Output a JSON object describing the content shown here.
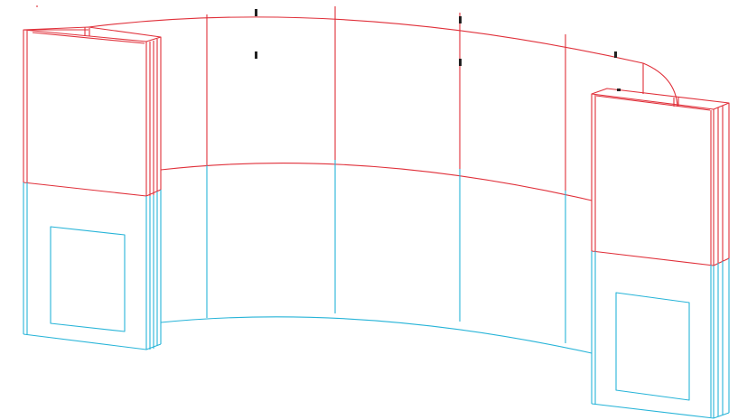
{
  "drawing": {
    "view": "wireframe",
    "subject": "curved-exhibit-wall-with-two-pillars",
    "colors": {
      "upper_section": "#e0303a",
      "lower_section": "#27b4d8",
      "marker": "#222222",
      "background": "#ffffff"
    },
    "wall_panel_count": 5,
    "pillar_count": 2,
    "top_marker_count": 6
  }
}
